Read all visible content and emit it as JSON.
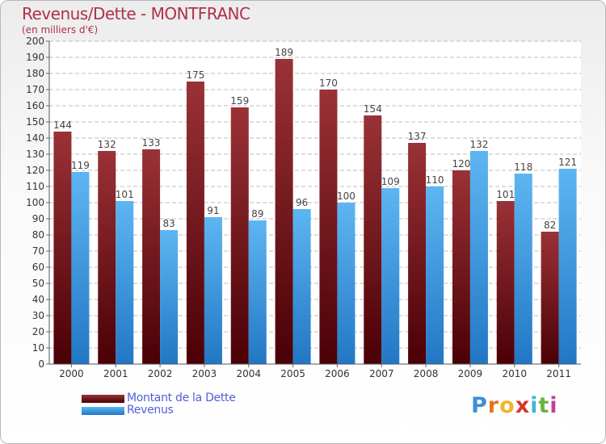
{
  "chart_data": {
    "type": "bar",
    "title": "Revenus/Dette - MONTFRANC",
    "subtitle": "(en milliers d'€)",
    "categories": [
      "2000",
      "2001",
      "2002",
      "2003",
      "2004",
      "2005",
      "2006",
      "2007",
      "2008",
      "2009",
      "2010",
      "2011"
    ],
    "series": [
      {
        "name": "Montant de la Dette",
        "color": "#6e0f14",
        "values": [
          144,
          132,
          133,
          175,
          159,
          189,
          170,
          154,
          137,
          120,
          101,
          82
        ]
      },
      {
        "name": "Revenus",
        "color": "#3f9ee6",
        "values": [
          119,
          101,
          83,
          91,
          89,
          96,
          100,
          109,
          110,
          132,
          118,
          121
        ]
      }
    ],
    "ylim": [
      0,
      200
    ],
    "ytick_step": 10,
    "grid": true,
    "legend": "bottom-left"
  },
  "brand": {
    "letters": [
      {
        "ch": "P",
        "color": "#3c8fd9"
      },
      {
        "ch": "r",
        "color": "#e8731e"
      },
      {
        "ch": "o",
        "color": "#f0b52a"
      },
      {
        "ch": "x",
        "color": "#d8352a"
      },
      {
        "ch": "i",
        "color": "#43b5d8"
      },
      {
        "ch": "t",
        "color": "#6db33f"
      },
      {
        "ch": "i",
        "color": "#c43f9a"
      }
    ]
  }
}
